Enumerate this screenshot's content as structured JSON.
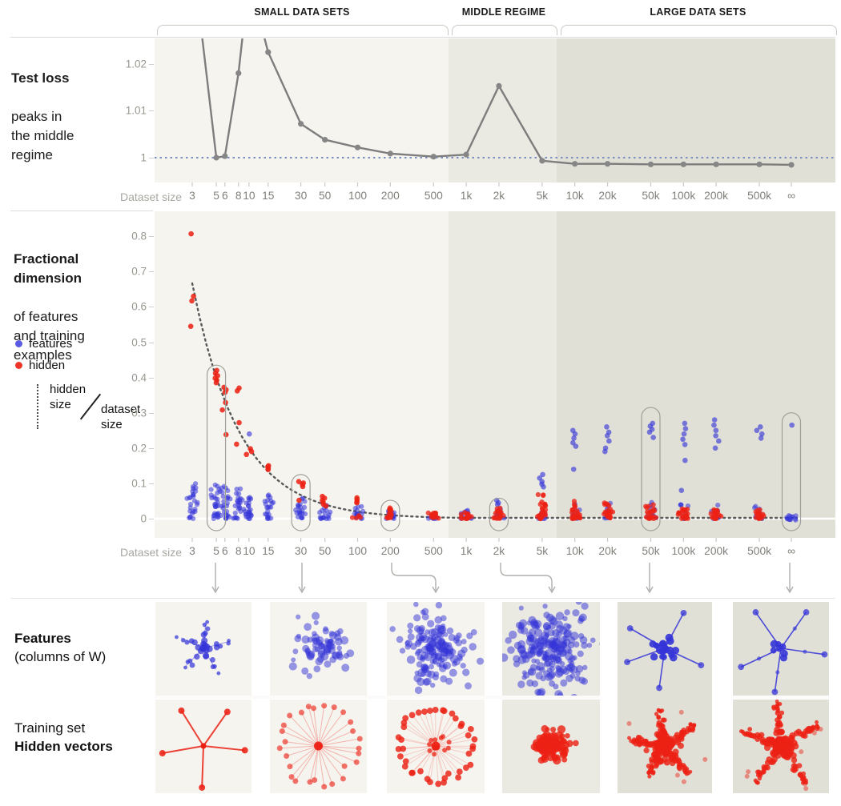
{
  "header": {
    "regions": [
      {
        "label": "SMALL DATA SETS"
      },
      {
        "label": "MIDDLE REGIME"
      },
      {
        "label": "LARGE DATA SETS"
      }
    ]
  },
  "axis": {
    "label": "Dataset size",
    "ticks": [
      {
        "v": 3,
        "label": "3"
      },
      {
        "v": 5,
        "label": "5"
      },
      {
        "v": 6,
        "label": "6"
      },
      {
        "v": 8,
        "label": "8"
      },
      {
        "v": 10,
        "label": "10"
      },
      {
        "v": 15,
        "label": "15"
      },
      {
        "v": 30,
        "label": "30"
      },
      {
        "v": 50,
        "label": "50"
      },
      {
        "v": 100,
        "label": "100"
      },
      {
        "v": 200,
        "label": "200"
      },
      {
        "v": 500,
        "label": "500"
      },
      {
        "v": 1000,
        "label": "1k"
      },
      {
        "v": 2000,
        "label": "2k"
      },
      {
        "v": 5000,
        "label": "5k"
      },
      {
        "v": 10000,
        "label": "10k"
      },
      {
        "v": 20000,
        "label": "20k"
      },
      {
        "v": 50000,
        "label": "50k"
      },
      {
        "v": 100000,
        "label": "100k"
      },
      {
        "v": 200000,
        "label": "200k"
      },
      {
        "v": 500000,
        "label": "500k"
      },
      {
        "v": "inf",
        "label": "∞"
      }
    ]
  },
  "loss_section": {
    "title_bold": "Test loss",
    "title_rest": "peaks in\nthe middle\nregime",
    "ytick_labels": [
      "1.02",
      "1.01",
      "1"
    ]
  },
  "fraction_section": {
    "title_bold": "Fractional\ndimension",
    "title_rest": "of features\nand training\nexamples",
    "ytick_labels": [
      "0.8",
      "0.7",
      "0.6",
      "0.5",
      "0.4",
      "0.3",
      "0.2",
      "0.1",
      "0"
    ],
    "legend": {
      "features_label": "features",
      "hidden_label": "hidden",
      "ratio_numerator": "hidden\nsize",
      "ratio_denominator": "dataset\nsize"
    }
  },
  "rows": {
    "features_bold": "Features",
    "features_rest": "(columns of W)",
    "hidden_regular": "Training set",
    "hidden_bold": "Hidden vectors"
  },
  "colors": {
    "features_blue": "#3434d8",
    "hidden_red": "#ec2114",
    "line_gray": "#7d7d7d",
    "marker_gray": "#868686",
    "baseline_blue": "#7a8fc0",
    "curve_gray": "#585858",
    "capsule_gray": "#9f9f99",
    "arrow_gray": "#aeaeab",
    "region_small": "#f6f4ef",
    "region_middle": "#eae9e2",
    "region_large": "#e1e0d7"
  },
  "chart_data": [
    {
      "type": "line",
      "title": "Test loss peaks in the middle regime",
      "x_categories": [
        "3",
        "5",
        "6",
        "8",
        "10",
        "15",
        "30",
        "50",
        "100",
        "200",
        "500",
        "1k",
        "2k",
        "5k",
        "10k",
        "20k",
        "50k",
        "100k",
        "200k",
        "500k",
        "∞"
      ],
      "values": [
        1.04,
        1.0,
        1.0003,
        1.0165,
        1.035,
        1.0206,
        1.0066,
        1.0035,
        1.002,
        1.0008,
        1.0002,
        1.0006,
        1.014,
        0.9994,
        0.9988,
        0.9988,
        0.9987,
        0.9987,
        0.9987,
        0.9987,
        0.9986
      ],
      "offscale_points": [
        "3",
        "10"
      ],
      "baseline": 1,
      "yticks": [
        1,
        1.01,
        1.02
      ],
      "ylim": [
        0.9945,
        1.0225
      ],
      "x_scale": "log",
      "regions": [
        {
          "name": "SMALL DATA SETS",
          "x_from": "3",
          "x_to": "500"
        },
        {
          "name": "MIDDLE REGIME",
          "x_from": "1k",
          "x_to": "5k"
        },
        {
          "name": "LARGE DATA SETS",
          "x_from": "10k",
          "x_to": "∞"
        }
      ]
    },
    {
      "type": "scatter",
      "title": "Fractional dimension of features and training examples",
      "x_categories": [
        "3",
        "5",
        "6",
        "8",
        "10",
        "15",
        "30",
        "50",
        "100",
        "200",
        "500",
        "1k",
        "2k",
        "5k",
        "10k",
        "20k",
        "50k",
        "100k",
        "200k",
        "500k",
        "∞"
      ],
      "yticks": [
        0,
        0.1,
        0.2,
        0.3,
        0.4,
        0.5,
        0.6,
        0.7,
        0.8
      ],
      "ylim": [
        -0.05,
        0.87
      ],
      "series": [
        {
          "name": "features",
          "color": "#3434d8",
          "columns": [
            {
              "l": 0,
              "h": 0.105,
              "n": 26
            },
            {
              "l": 0,
              "h": 0.098,
              "n": 28
            },
            {
              "l": 0,
              "h": 0.092,
              "n": 26
            },
            {
              "l": 0,
              "h": 0.085,
              "n": 24
            },
            {
              "o": [
                0.24
              ],
              "l": 0,
              "h": 0.08,
              "n": 24
            },
            {
              "l": 0,
              "h": 0.068,
              "n": 22
            },
            {
              "l": 0,
              "h": 0.06,
              "n": 22
            },
            {
              "l": 0,
              "h": 0.045,
              "n": 18
            },
            {
              "l": 0,
              "h": 0.035,
              "n": 18
            },
            {
              "l": 0,
              "h": 0.022,
              "n": 16
            },
            {
              "l": 0,
              "h": 0.013,
              "n": 12
            },
            {
              "l": 0,
              "h": 0.028,
              "n": 12
            },
            {
              "o": [
                0.052,
                0.045,
                0.04
              ],
              "l": 0,
              "h": 0.03,
              "n": 12
            },
            {
              "o": [
                0.125,
                0.115,
                0.105,
                0.098,
                0.09
              ],
              "l": 0,
              "h": 0.02,
              "n": 10
            },
            {
              "o": [
                0.25,
                0.24,
                0.228,
                0.215,
                0.205,
                0.14
              ],
              "l": 0,
              "h": 0.065,
              "n": 10
            },
            {
              "o": [
                0.26,
                0.245,
                0.235,
                0.22,
                0.2,
                0.19
              ],
              "l": 0,
              "h": 0.06,
              "n": 10
            },
            {
              "o": [
                0.27,
                0.262,
                0.253,
                0.245,
                0.23
              ],
              "l": 0,
              "h": 0.05,
              "n": 9
            },
            {
              "o": [
                0.27,
                0.255,
                0.24,
                0.225,
                0.21,
                0.165,
                0.08
              ],
              "l": 0,
              "h": 0.04,
              "n": 8
            },
            {
              "o": [
                0.28,
                0.265,
                0.25,
                0.235,
                0.22,
                0.2
              ],
              "l": 0,
              "h": 0.04,
              "n": 8
            },
            {
              "o": [
                0.26,
                0.25,
                0.24,
                0.228
              ],
              "l": 0,
              "h": 0.04,
              "n": 9
            },
            {
              "o": [
                0.265
              ],
              "l": -0.004,
              "h": 0.01,
              "n": 13,
              "wide": true
            }
          ]
        },
        {
          "name": "hidden",
          "color": "#ec2114",
          "columns": [
            {
              "o": [
                0.807,
                0.63,
                0.617,
                0.545
              ]
            },
            {
              "o": [
                0.42,
                0.412,
                0.405,
                0.398,
                0.392,
                0.385
              ]
            },
            {
              "o": [
                0.372,
                0.365,
                0.358,
                0.329,
                0.308,
                0.238
              ]
            },
            {
              "o": [
                0.37,
                0.362,
                0.272,
                0.211
              ]
            },
            {
              "o": [
                0.198,
                0.19,
                0.182
              ]
            },
            {
              "o": [
                0.15,
                0.147,
                0.143,
                0.139
              ]
            },
            {
              "o": [
                0.105,
                0.101,
                0.097,
                0.091,
                0.052
              ]
            },
            {
              "o": [
                0.063,
                0.058,
                0.052,
                0.047,
                0.041,
                0.036
              ]
            },
            {
              "o": [
                0.059,
                0.054,
                0.048,
                0.045
              ],
              "l": 0,
              "h": 0.01,
              "n": 4
            },
            {
              "l": 0.002,
              "h": 0.032,
              "n": 14
            },
            {
              "l": 0,
              "h": 0.02,
              "n": 14
            },
            {
              "l": 0,
              "h": 0.022,
              "n": 16
            },
            {
              "l": 0,
              "h": 0.035,
              "n": 18
            },
            {
              "l": 0,
              "h": 0.075,
              "n": 26
            },
            {
              "l": 0,
              "h": 0.05,
              "n": 24
            },
            {
              "l": 0,
              "h": 0.045,
              "n": 22
            },
            {
              "l": 0,
              "h": 0.04,
              "n": 22
            },
            {
              "l": 0,
              "h": 0.03,
              "n": 20
            },
            {
              "l": 0,
              "h": 0.026,
              "n": 20
            },
            {
              "l": 0,
              "h": 0.026,
              "n": 18
            },
            {}
          ]
        }
      ],
      "curve": {
        "name": "hidden size / dataset size",
        "formula": "2 / dataset_size",
        "values": [
          0.667,
          0.4,
          0.333,
          0.25,
          0.2,
          0.133,
          0.0667,
          0.04,
          0.02,
          0.01,
          0.004,
          0.002,
          0.001,
          0.0004,
          0.0002,
          0.0001,
          4e-05,
          2e-05,
          1e-05,
          4e-06,
          0
        ]
      },
      "highlight_columns": [
        "5",
        "30",
        "200",
        "2k",
        "50k",
        "∞"
      ],
      "capsule_tops": [
        0.435,
        0.125,
        0.052,
        0.058,
        0.315,
        0.3
      ],
      "capsule_bottom": -0.034
    },
    {
      "type": "scatter-panels",
      "rows": [
        "features (columns of W)",
        "training set hidden vectors"
      ],
      "panels": [
        {
          "dataset": "5",
          "x": 194,
          "w": 120,
          "bg": "#f6f4ef",
          "tall": false,
          "features": {
            "pattern": "star-blobs",
            "angles": [
              85,
              155,
              225,
              300,
              15
            ],
            "len": 34
          },
          "hidden": {
            "pattern": "spoke-star",
            "angles": [
              122,
              55,
              -6,
              268,
              190
            ],
            "len": 52
          }
        },
        {
          "dataset": "30",
          "x": 337,
          "w": 121,
          "bg": "#f6f4ef",
          "tall": false,
          "features": {
            "pattern": "blob",
            "n": 70,
            "sigma": 17
          },
          "hidden": {
            "pattern": "radial",
            "n": 27,
            "rmin": 40,
            "rmax": 53
          }
        },
        {
          "dataset": "200",
          "x": 483,
          "w": 122,
          "bg": "#f6f4ef",
          "tall": false,
          "features": {
            "pattern": "blob",
            "n": 150,
            "sigma": 21
          },
          "hidden": {
            "pattern": "ring",
            "n": 40,
            "radius": 44
          }
        },
        {
          "dataset": "2k",
          "x": 627,
          "w": 122,
          "bg": "#eae9e2",
          "tall": false,
          "features": {
            "pattern": "blob",
            "n": 210,
            "sigma": 25
          },
          "hidden": {
            "pattern": "blob",
            "n": 90,
            "sigma": 11
          }
        },
        {
          "dataset": "50k",
          "x": 771,
          "w": 118,
          "bg": "#e1e0d7",
          "tall": true,
          "features": {
            "pattern": "needle-star",
            "angles": [
              62,
              150,
              200,
              262,
              335
            ],
            "len": 50,
            "cluster": 22
          },
          "hidden": {
            "pattern": "thick-star",
            "angles": [
              100,
              170,
              240,
              310,
              35
            ],
            "len": 46
          }
        },
        {
          "dataset": "∞",
          "x": 915,
          "w": 120,
          "bg": "#e1e0d7",
          "tall": false,
          "features": {
            "pattern": "needle-star",
            "angles": [
              55,
              125,
              205,
              262,
              352
            ],
            "len": 55,
            "cluster": 7
          },
          "hidden": {
            "pattern": "thick-star",
            "angles": [
              95,
              160,
              235,
              305,
              28
            ],
            "len": 56
          }
        }
      ]
    }
  ]
}
